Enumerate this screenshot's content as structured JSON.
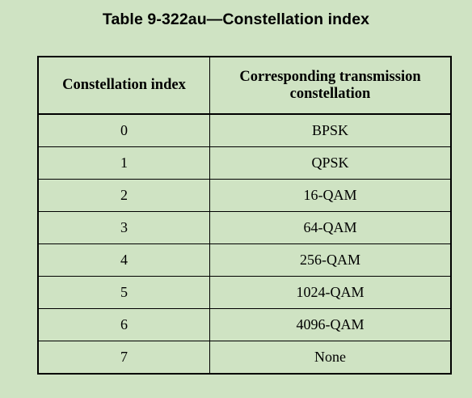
{
  "caption": "Table 9-322au—Constellation index",
  "table": {
    "headers": [
      "Constellation index",
      "Corresponding transmission constellation"
    ],
    "rows": [
      [
        "0",
        "BPSK"
      ],
      [
        "1",
        "QPSK"
      ],
      [
        "2",
        "16-QAM"
      ],
      [
        "3",
        "64-QAM"
      ],
      [
        "4",
        "256-QAM"
      ],
      [
        "5",
        "1024-QAM"
      ],
      [
        "6",
        "4096-QAM"
      ],
      [
        "7",
        "None"
      ]
    ]
  }
}
